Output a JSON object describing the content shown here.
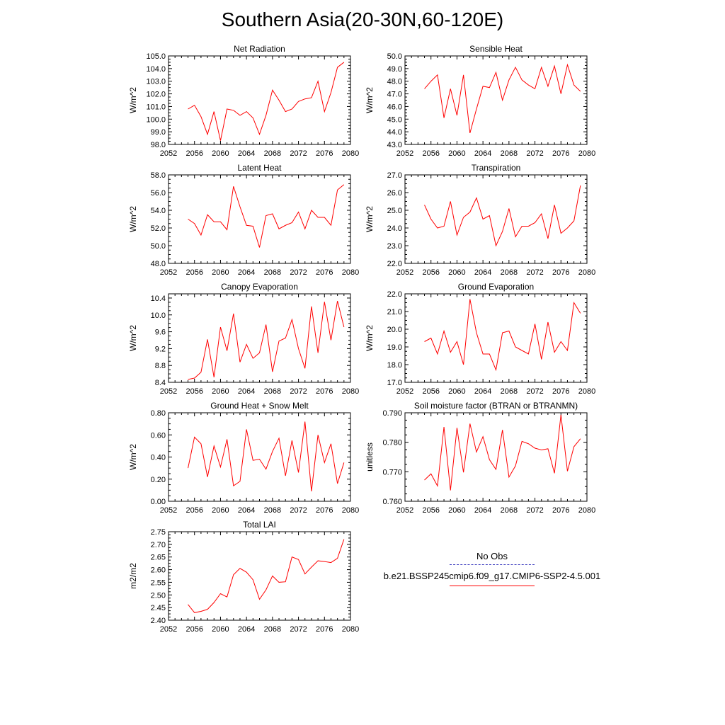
{
  "page": {
    "title": "Southern Asia(20-30N,60-120E)"
  },
  "legend": {
    "obs_label": "No Obs",
    "case_label": "b.e21.BSSP245cmip6.f09_g17.CMIP6-SSP2-4.5.001",
    "obs_color": "#4040c0",
    "case_color": "#ff0000"
  },
  "chart_data": [
    {
      "type": "line",
      "title": "Net Radiation",
      "ylabel": "W/m^2",
      "xlim": [
        2052,
        2080
      ],
      "ylim": [
        98.0,
        105.0
      ],
      "xticks": [
        "2052",
        "2056",
        "2060",
        "2064",
        "2068",
        "2072",
        "2076",
        "2080"
      ],
      "yticks": [
        "98.0",
        "99.0",
        "100.0",
        "101.0",
        "102.0",
        "103.0",
        "104.0",
        "105.0"
      ],
      "series": [
        {
          "color": "#ff0000",
          "x": [
            2055,
            2056,
            2057,
            2058,
            2059,
            2060,
            2061,
            2062,
            2063,
            2064,
            2065,
            2066,
            2067,
            2068,
            2069,
            2070,
            2071,
            2072,
            2073,
            2074,
            2075,
            2076,
            2077,
            2078,
            2079
          ],
          "values": [
            100.8,
            101.1,
            100.2,
            98.8,
            100.6,
            98.3,
            100.8,
            100.7,
            100.3,
            100.6,
            100.1,
            98.8,
            100.3,
            102.3,
            101.5,
            100.6,
            100.8,
            101.4,
            101.6,
            101.7,
            103.0,
            100.6,
            102.1,
            104.1,
            104.5
          ]
        }
      ]
    },
    {
      "type": "line",
      "title": "Sensible Heat",
      "ylabel": "W/m^2",
      "xlim": [
        2052,
        2080
      ],
      "ylim": [
        43.0,
        50.0
      ],
      "xticks": [
        "2052",
        "2056",
        "2060",
        "2064",
        "2068",
        "2072",
        "2076",
        "2080"
      ],
      "yticks": [
        "43.0",
        "44.0",
        "45.0",
        "46.0",
        "47.0",
        "48.0",
        "49.0",
        "50.0"
      ],
      "series": [
        {
          "color": "#ff0000",
          "x": [
            2055,
            2056,
            2057,
            2058,
            2059,
            2060,
            2061,
            2062,
            2063,
            2064,
            2065,
            2066,
            2067,
            2068,
            2069,
            2070,
            2071,
            2072,
            2073,
            2074,
            2075,
            2076,
            2077,
            2078,
            2079
          ],
          "values": [
            47.4,
            48.0,
            48.5,
            45.1,
            47.4,
            45.3,
            48.5,
            43.9,
            45.8,
            47.6,
            47.5,
            48.7,
            46.5,
            48.1,
            49.1,
            48.1,
            47.7,
            47.4,
            49.1,
            47.6,
            49.2,
            47.0,
            49.3,
            47.7,
            47.2
          ]
        }
      ]
    },
    {
      "type": "line",
      "title": "Latent Heat",
      "ylabel": "W/m^2",
      "xlim": [
        2052,
        2080
      ],
      "ylim": [
        48.0,
        58.0
      ],
      "xticks": [
        "2052",
        "2056",
        "2060",
        "2064",
        "2068",
        "2072",
        "2076",
        "2080"
      ],
      "yticks": [
        "48.0",
        "50.0",
        "52.0",
        "54.0",
        "56.0",
        "58.0"
      ],
      "series": [
        {
          "color": "#ff0000",
          "x": [
            2055,
            2056,
            2057,
            2058,
            2059,
            2060,
            2061,
            2062,
            2063,
            2064,
            2065,
            2066,
            2067,
            2068,
            2069,
            2070,
            2071,
            2072,
            2073,
            2074,
            2075,
            2076,
            2077,
            2078,
            2079
          ],
          "values": [
            53.0,
            52.5,
            51.2,
            53.5,
            52.7,
            52.7,
            51.8,
            56.7,
            54.4,
            52.3,
            52.2,
            49.8,
            53.4,
            53.6,
            51.9,
            52.3,
            52.6,
            53.8,
            51.9,
            54.0,
            53.2,
            53.2,
            52.3,
            56.3,
            56.9
          ]
        }
      ]
    },
    {
      "type": "line",
      "title": "Transpiration",
      "ylabel": "W/m^2",
      "xlim": [
        2052,
        2080
      ],
      "ylim": [
        22.0,
        27.0
      ],
      "xticks": [
        "2052",
        "2056",
        "2060",
        "2064",
        "2068",
        "2072",
        "2076",
        "2080"
      ],
      "yticks": [
        "22.0",
        "23.0",
        "24.0",
        "25.0",
        "26.0",
        "27.0"
      ],
      "series": [
        {
          "color": "#ff0000",
          "x": [
            2055,
            2056,
            2057,
            2058,
            2059,
            2060,
            2061,
            2062,
            2063,
            2064,
            2065,
            2066,
            2067,
            2068,
            2069,
            2070,
            2071,
            2072,
            2073,
            2074,
            2075,
            2076,
            2077,
            2078,
            2079
          ],
          "values": [
            25.3,
            24.5,
            24.0,
            24.1,
            25.5,
            23.6,
            24.6,
            24.9,
            25.7,
            24.5,
            24.7,
            23.0,
            23.8,
            25.1,
            23.5,
            24.1,
            24.1,
            24.3,
            24.8,
            23.4,
            25.3,
            23.7,
            24.0,
            24.4,
            26.4
          ]
        }
      ]
    },
    {
      "type": "line",
      "title": "Canopy Evaporation",
      "ylabel": "W/m^2",
      "xlim": [
        2052,
        2080
      ],
      "ylim": [
        8.4,
        10.5
      ],
      "xticks": [
        "2052",
        "2056",
        "2060",
        "2064",
        "2068",
        "2072",
        "2076",
        "2080"
      ],
      "yticks": [
        "8.4",
        "8.8",
        "9.2",
        "9.6",
        "10.0",
        "10.4"
      ],
      "series": [
        {
          "color": "#ff0000",
          "x": [
            2055,
            2056,
            2057,
            2058,
            2059,
            2060,
            2061,
            2062,
            2063,
            2064,
            2065,
            2066,
            2067,
            2068,
            2069,
            2070,
            2071,
            2072,
            2073,
            2074,
            2075,
            2076,
            2077,
            2078,
            2079
          ],
          "values": [
            8.47,
            8.5,
            8.64,
            9.42,
            8.52,
            9.71,
            9.15,
            10.03,
            8.88,
            9.3,
            8.97,
            9.1,
            9.77,
            8.65,
            9.38,
            9.45,
            9.89,
            9.2,
            8.73,
            10.2,
            9.1,
            10.31,
            9.4,
            10.33,
            9.71
          ]
        }
      ]
    },
    {
      "type": "line",
      "title": "Ground Evaporation",
      "ylabel": "W/m^2",
      "xlim": [
        2052,
        2080
      ],
      "ylim": [
        17.0,
        22.0
      ],
      "xticks": [
        "2052",
        "2056",
        "2060",
        "2064",
        "2068",
        "2072",
        "2076",
        "2080"
      ],
      "yticks": [
        "17.0",
        "18.0",
        "19.0",
        "20.0",
        "21.0",
        "22.0"
      ],
      "series": [
        {
          "color": "#ff0000",
          "x": [
            2055,
            2056,
            2057,
            2058,
            2059,
            2060,
            2061,
            2062,
            2063,
            2064,
            2065,
            2066,
            2067,
            2068,
            2069,
            2070,
            2071,
            2072,
            2073,
            2074,
            2075,
            2076,
            2077,
            2078,
            2079
          ],
          "values": [
            19.3,
            19.5,
            18.6,
            19.9,
            18.7,
            19.3,
            18.0,
            21.7,
            19.8,
            18.6,
            18.6,
            17.7,
            19.8,
            19.9,
            19.0,
            18.8,
            18.6,
            20.3,
            18.3,
            20.4,
            18.7,
            19.3,
            18.8,
            21.5,
            20.9
          ]
        }
      ]
    },
    {
      "type": "line",
      "title": "Ground Heat + Snow Melt",
      "ylabel": "W/m^2",
      "xlim": [
        2052,
        2080
      ],
      "ylim": [
        0.0,
        0.8
      ],
      "xticks": [
        "2052",
        "2056",
        "2060",
        "2064",
        "2068",
        "2072",
        "2076",
        "2080"
      ],
      "yticks": [
        "0.00",
        "0.20",
        "0.40",
        "0.60",
        "0.80"
      ],
      "series": [
        {
          "color": "#ff0000",
          "x": [
            2055,
            2056,
            2057,
            2058,
            2059,
            2060,
            2061,
            2062,
            2063,
            2064,
            2065,
            2066,
            2067,
            2068,
            2069,
            2070,
            2071,
            2072,
            2073,
            2074,
            2075,
            2076,
            2077,
            2078,
            2079
          ],
          "values": [
            0.3,
            0.58,
            0.52,
            0.22,
            0.5,
            0.31,
            0.56,
            0.14,
            0.18,
            0.65,
            0.37,
            0.38,
            0.29,
            0.45,
            0.57,
            0.23,
            0.55,
            0.26,
            0.72,
            0.09,
            0.6,
            0.35,
            0.52,
            0.16,
            0.35
          ]
        }
      ]
    },
    {
      "type": "line",
      "title": "Soil moisture factor (BTRAN or BTRANMN)",
      "ylabel": "unitless",
      "xlim": [
        2052,
        2080
      ],
      "ylim": [
        0.76,
        0.79
      ],
      "xticks": [
        "2052",
        "2056",
        "2060",
        "2064",
        "2068",
        "2072",
        "2076",
        "2080"
      ],
      "yticks": [
        "0.760",
        "0.770",
        "0.780",
        "0.790"
      ],
      "series": [
        {
          "color": "#ff0000",
          "x": [
            2055,
            2056,
            2057,
            2058,
            2059,
            2060,
            2061,
            2062,
            2063,
            2064,
            2065,
            2066,
            2067,
            2068,
            2069,
            2070,
            2071,
            2072,
            2073,
            2074,
            2075,
            2076,
            2077,
            2078,
            2079
          ],
          "values": [
            0.7672,
            0.7693,
            0.7652,
            0.7852,
            0.7637,
            0.7849,
            0.7698,
            0.7863,
            0.7767,
            0.7819,
            0.7741,
            0.7708,
            0.7842,
            0.7682,
            0.772,
            0.7803,
            0.7795,
            0.778,
            0.7774,
            0.7778,
            0.7695,
            0.7893,
            0.7702,
            0.7785,
            0.7812
          ]
        }
      ]
    },
    {
      "type": "line",
      "title": "Total LAI",
      "ylabel": "m2/m2",
      "xlim": [
        2052,
        2080
      ],
      "ylim": [
        2.4,
        2.75
      ],
      "xticks": [
        "2052",
        "2056",
        "2060",
        "2064",
        "2068",
        "2072",
        "2076",
        "2080"
      ],
      "yticks": [
        "2.40",
        "2.45",
        "2.50",
        "2.55",
        "2.60",
        "2.65",
        "2.70",
        "2.75"
      ],
      "series": [
        {
          "color": "#ff0000",
          "x": [
            2055,
            2056,
            2057,
            2058,
            2059,
            2060,
            2061,
            2062,
            2063,
            2064,
            2065,
            2066,
            2067,
            2068,
            2069,
            2070,
            2071,
            2072,
            2073,
            2074,
            2075,
            2076,
            2077,
            2078,
            2079
          ],
          "values": [
            2.462,
            2.43,
            2.435,
            2.443,
            2.47,
            2.505,
            2.492,
            2.58,
            2.605,
            2.59,
            2.56,
            2.483,
            2.52,
            2.575,
            2.55,
            2.552,
            2.65,
            2.64,
            2.583,
            2.61,
            2.635,
            2.632,
            2.628,
            2.645,
            2.72
          ]
        }
      ]
    }
  ]
}
